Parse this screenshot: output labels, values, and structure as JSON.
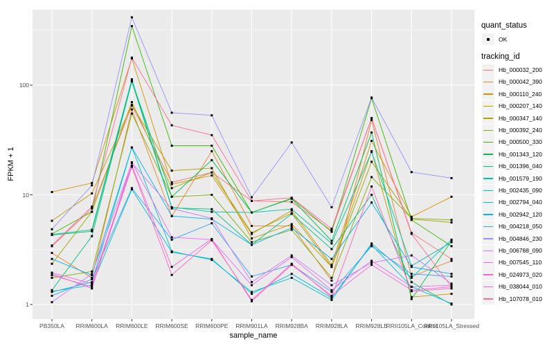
{
  "figure": {
    "background": "#ffffff",
    "panel_background": "#ebebeb",
    "grid_color": "#ffffff",
    "tick_text_color": "#4d4d4d",
    "point_color": "#000000"
  },
  "axes": {
    "x_title": "sample_name",
    "y_title": "FPKM + 1"
  },
  "legend": {
    "quant_status_title": "quant_status",
    "quant_status_ok_label": "OK",
    "tracking_id_title": "tracking_id"
  },
  "chart_data": {
    "type": "line",
    "title": "",
    "xlabel": "sample_name",
    "ylabel": "FPKM + 1",
    "y_scale": "log10",
    "yticks": [
      1,
      10,
      100
    ],
    "ylim": [
      1,
      450
    ],
    "grid": "on",
    "legend_position": "right",
    "point_marker": "small black square (quant_status = OK)",
    "categories": [
      "PB350LA",
      "RRIM600LA",
      "RRIM600LE",
      "RRIM600SE",
      "RRIM600PE",
      "RRIM901LA",
      "RRIM928BA",
      "RRIM928LA",
      "RRIM928LE",
      "RRII105LA_Control",
      "RRII105LA_Stressed"
    ],
    "series": [
      {
        "name": "Hb_000032_200",
        "color": "#F8766D",
        "values": [
          3.4,
          7.5,
          65,
          13,
          16,
          8.8,
          8.6,
          4.7,
          50,
          4.5,
          2.6
        ]
      },
      {
        "name": "Hb_000042_390",
        "color": "#EA8331",
        "values": [
          2.95,
          1.75,
          60,
          6.4,
          25,
          5.2,
          5.2,
          1.65,
          48,
          1.8,
          2.5
        ]
      },
      {
        "name": "Hb_000110_240",
        "color": "#D89000",
        "values": [
          10.6,
          12.8,
          175,
          12.5,
          15,
          4.4,
          7.2,
          2.3,
          31,
          6.3,
          9.6
        ]
      },
      {
        "name": "Hb_000207_140",
        "color": "#C09B00",
        "values": [
          5.8,
          10.3,
          66,
          16.6,
          17.5,
          4.0,
          5.4,
          2.2,
          25,
          1.17,
          1.25
        ]
      },
      {
        "name": "Hb_000347_140",
        "color": "#A3A500",
        "values": [
          2.35,
          7.0,
          70,
          11.5,
          16,
          4.5,
          6.8,
          2.2,
          20,
          6.0,
          5.6
        ]
      },
      {
        "name": "Hb_000392_240",
        "color": "#7CAE00",
        "values": [
          1.75,
          2.0,
          55,
          9.6,
          10,
          3.7,
          4.8,
          1.75,
          14.5,
          6.1,
          5.9
        ]
      },
      {
        "name": "Hb_000500_330",
        "color": "#39B600",
        "values": [
          4.4,
          7.0,
          345,
          28,
          28,
          6.9,
          9.3,
          4.6,
          76,
          5.9,
          3.4
        ]
      },
      {
        "name": "Hb_001343_120",
        "color": "#00BB4E",
        "values": [
          4.3,
          4.65,
          110,
          9.6,
          20.7,
          6.9,
          9.2,
          3.8,
          37,
          1.12,
          3.8
        ]
      },
      {
        "name": "Hb_001396_040",
        "color": "#00BF7D",
        "values": [
          1.35,
          4.2,
          108,
          7.6,
          7.4,
          3.5,
          6.7,
          3.2,
          10,
          1.6,
          1.0
        ]
      },
      {
        "name": "Hb_001579_190",
        "color": "#00C1A3",
        "values": [
          4.35,
          4.8,
          113,
          7.7,
          7.0,
          6.9,
          7.4,
          3.6,
          24.6,
          2.25,
          3.7
        ]
      },
      {
        "name": "Hb_002435_090",
        "color": "#00BFC4",
        "values": [
          1.3,
          1.6,
          27,
          3.05,
          2.55,
          1.3,
          1.75,
          1.1,
          3.6,
          1.75,
          3.9
        ]
      },
      {
        "name": "Hb_002794_040",
        "color": "#00BAE0",
        "values": [
          1.32,
          1.5,
          11.2,
          3.0,
          2.6,
          1.25,
          1.9,
          1.15,
          3.5,
          1.45,
          1.02
        ]
      },
      {
        "name": "Hb_002942_120",
        "color": "#00B0F6",
        "values": [
          2.6,
          1.85,
          27,
          6.4,
          6.0,
          3.5,
          5.0,
          2.6,
          8.5,
          2.2,
          1.9
        ]
      },
      {
        "name": "Hb_004218_050",
        "color": "#35A2FF",
        "values": [
          1.2,
          1.7,
          11.5,
          3.9,
          5.5,
          1.8,
          2.3,
          1.3,
          3.4,
          1.9,
          1.8
        ]
      },
      {
        "name": "Hb_004846_230",
        "color": "#9590FF",
        "values": [
          4.85,
          12.2,
          415,
          56,
          53,
          9.5,
          30,
          7.7,
          77,
          16.1,
          14.2
        ]
      },
      {
        "name": "Hb_006788_090",
        "color": "#C77CFF",
        "values": [
          1.05,
          1.9,
          19.5,
          7.5,
          6.1,
          1.6,
          2.8,
          1.5,
          2.4,
          2.8,
          1.55
        ]
      },
      {
        "name": "Hb_007545_110",
        "color": "#E76BF3",
        "values": [
          1.9,
          1.4,
          19.8,
          4.1,
          3.9,
          1.5,
          2.7,
          1.35,
          2.5,
          1.45,
          1.5
        ]
      },
      {
        "name": "Hb_024973_020",
        "color": "#FA62DB",
        "values": [
          1.95,
          1.55,
          18.5,
          2.2,
          3.95,
          1.07,
          2.3,
          1.2,
          2.3,
          1.35,
          1.45
        ]
      },
      {
        "name": "Hb_038044_010",
        "color": "#FF62BC",
        "values": [
          1.85,
          1.45,
          18,
          1.86,
          3.85,
          1.1,
          2.35,
          1.17,
          11.9,
          1.32,
          1.4
        ]
      },
      {
        "name": "Hb_107078_010",
        "color": "#FF6A98",
        "values": [
          3.45,
          7.8,
          178,
          43,
          35,
          8.8,
          9.4,
          4.9,
          50,
          4.4,
          1.45
        ]
      }
    ]
  }
}
